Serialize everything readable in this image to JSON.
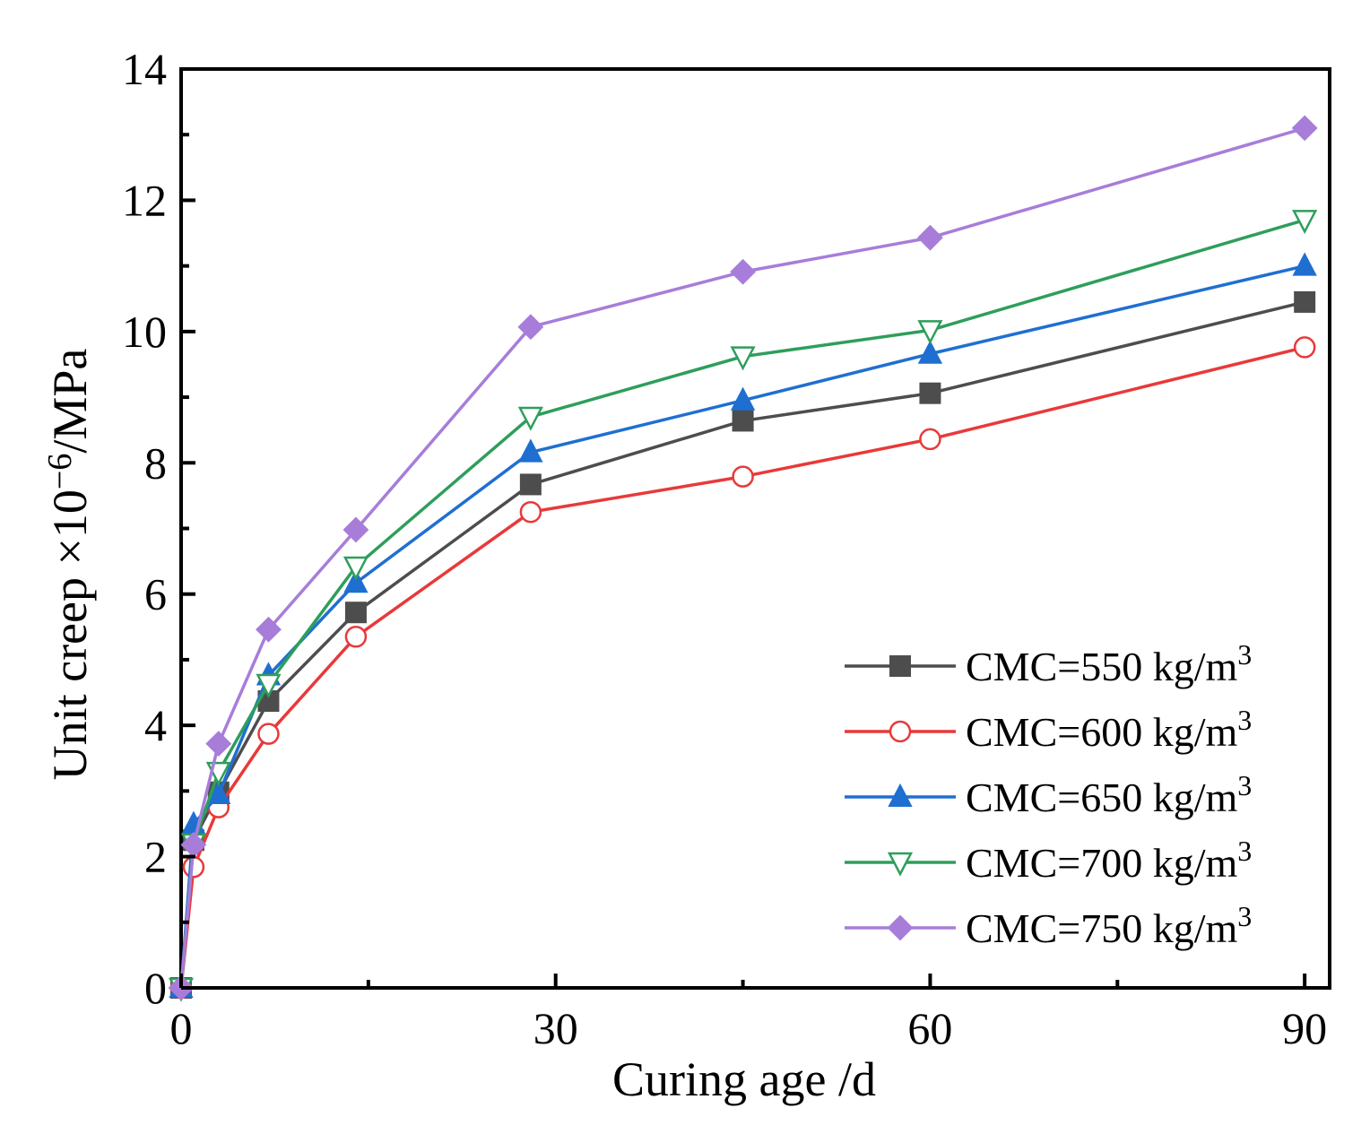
{
  "chart_data": {
    "type": "line",
    "xlabel": "Curing age /d",
    "ylabel_parts": {
      "prefix": "Unit creep ×10",
      "exponent": "−6",
      "suffix": "/MPa"
    },
    "xlim": [
      0,
      92
    ],
    "ylim": [
      0,
      14
    ],
    "xticks": [
      0,
      30,
      60,
      90
    ],
    "xminor": [
      15,
      45,
      75
    ],
    "yticks": [
      0,
      2,
      4,
      6,
      8,
      10,
      12,
      14
    ],
    "yminor": [
      1,
      3,
      5,
      7,
      9,
      11,
      13
    ],
    "legend_position": "bottom-right",
    "grid": false,
    "x": [
      0,
      1,
      3,
      7,
      14,
      28,
      45,
      60,
      90
    ],
    "series": [
      {
        "name": "CMC=550 kg/m",
        "name_sup": "3",
        "color": "#4d4d4d",
        "marker": "square-filled",
        "values": [
          0,
          2.25,
          2.98,
          4.37,
          5.72,
          7.67,
          8.64,
          9.06,
          10.45
        ]
      },
      {
        "name": "CMC=600 kg/m",
        "name_sup": "3",
        "color": "#e8393a",
        "marker": "circle-open",
        "values": [
          0,
          1.84,
          2.75,
          3.87,
          5.35,
          7.25,
          7.79,
          8.36,
          9.76
        ]
      },
      {
        "name": "CMC=650 kg/m",
        "name_sup": "3",
        "color": "#1f6fd1",
        "marker": "triangle-up-filled",
        "values": [
          0,
          2.49,
          2.95,
          4.76,
          6.17,
          8.16,
          8.95,
          9.66,
          11.0
        ]
      },
      {
        "name": "CMC=700 kg/m",
        "name_sup": "3",
        "color": "#2e9e5b",
        "marker": "triangle-down-open",
        "values": [
          0,
          2.2,
          3.29,
          4.63,
          6.42,
          8.7,
          9.62,
          10.02,
          11.7
        ]
      },
      {
        "name": "CMC=750 kg/m",
        "name_sup": "3",
        "color": "#a77dd9",
        "marker": "diamond-filled",
        "values": [
          0,
          2.18,
          3.72,
          5.46,
          6.98,
          10.07,
          10.91,
          11.43,
          13.1
        ]
      }
    ]
  }
}
